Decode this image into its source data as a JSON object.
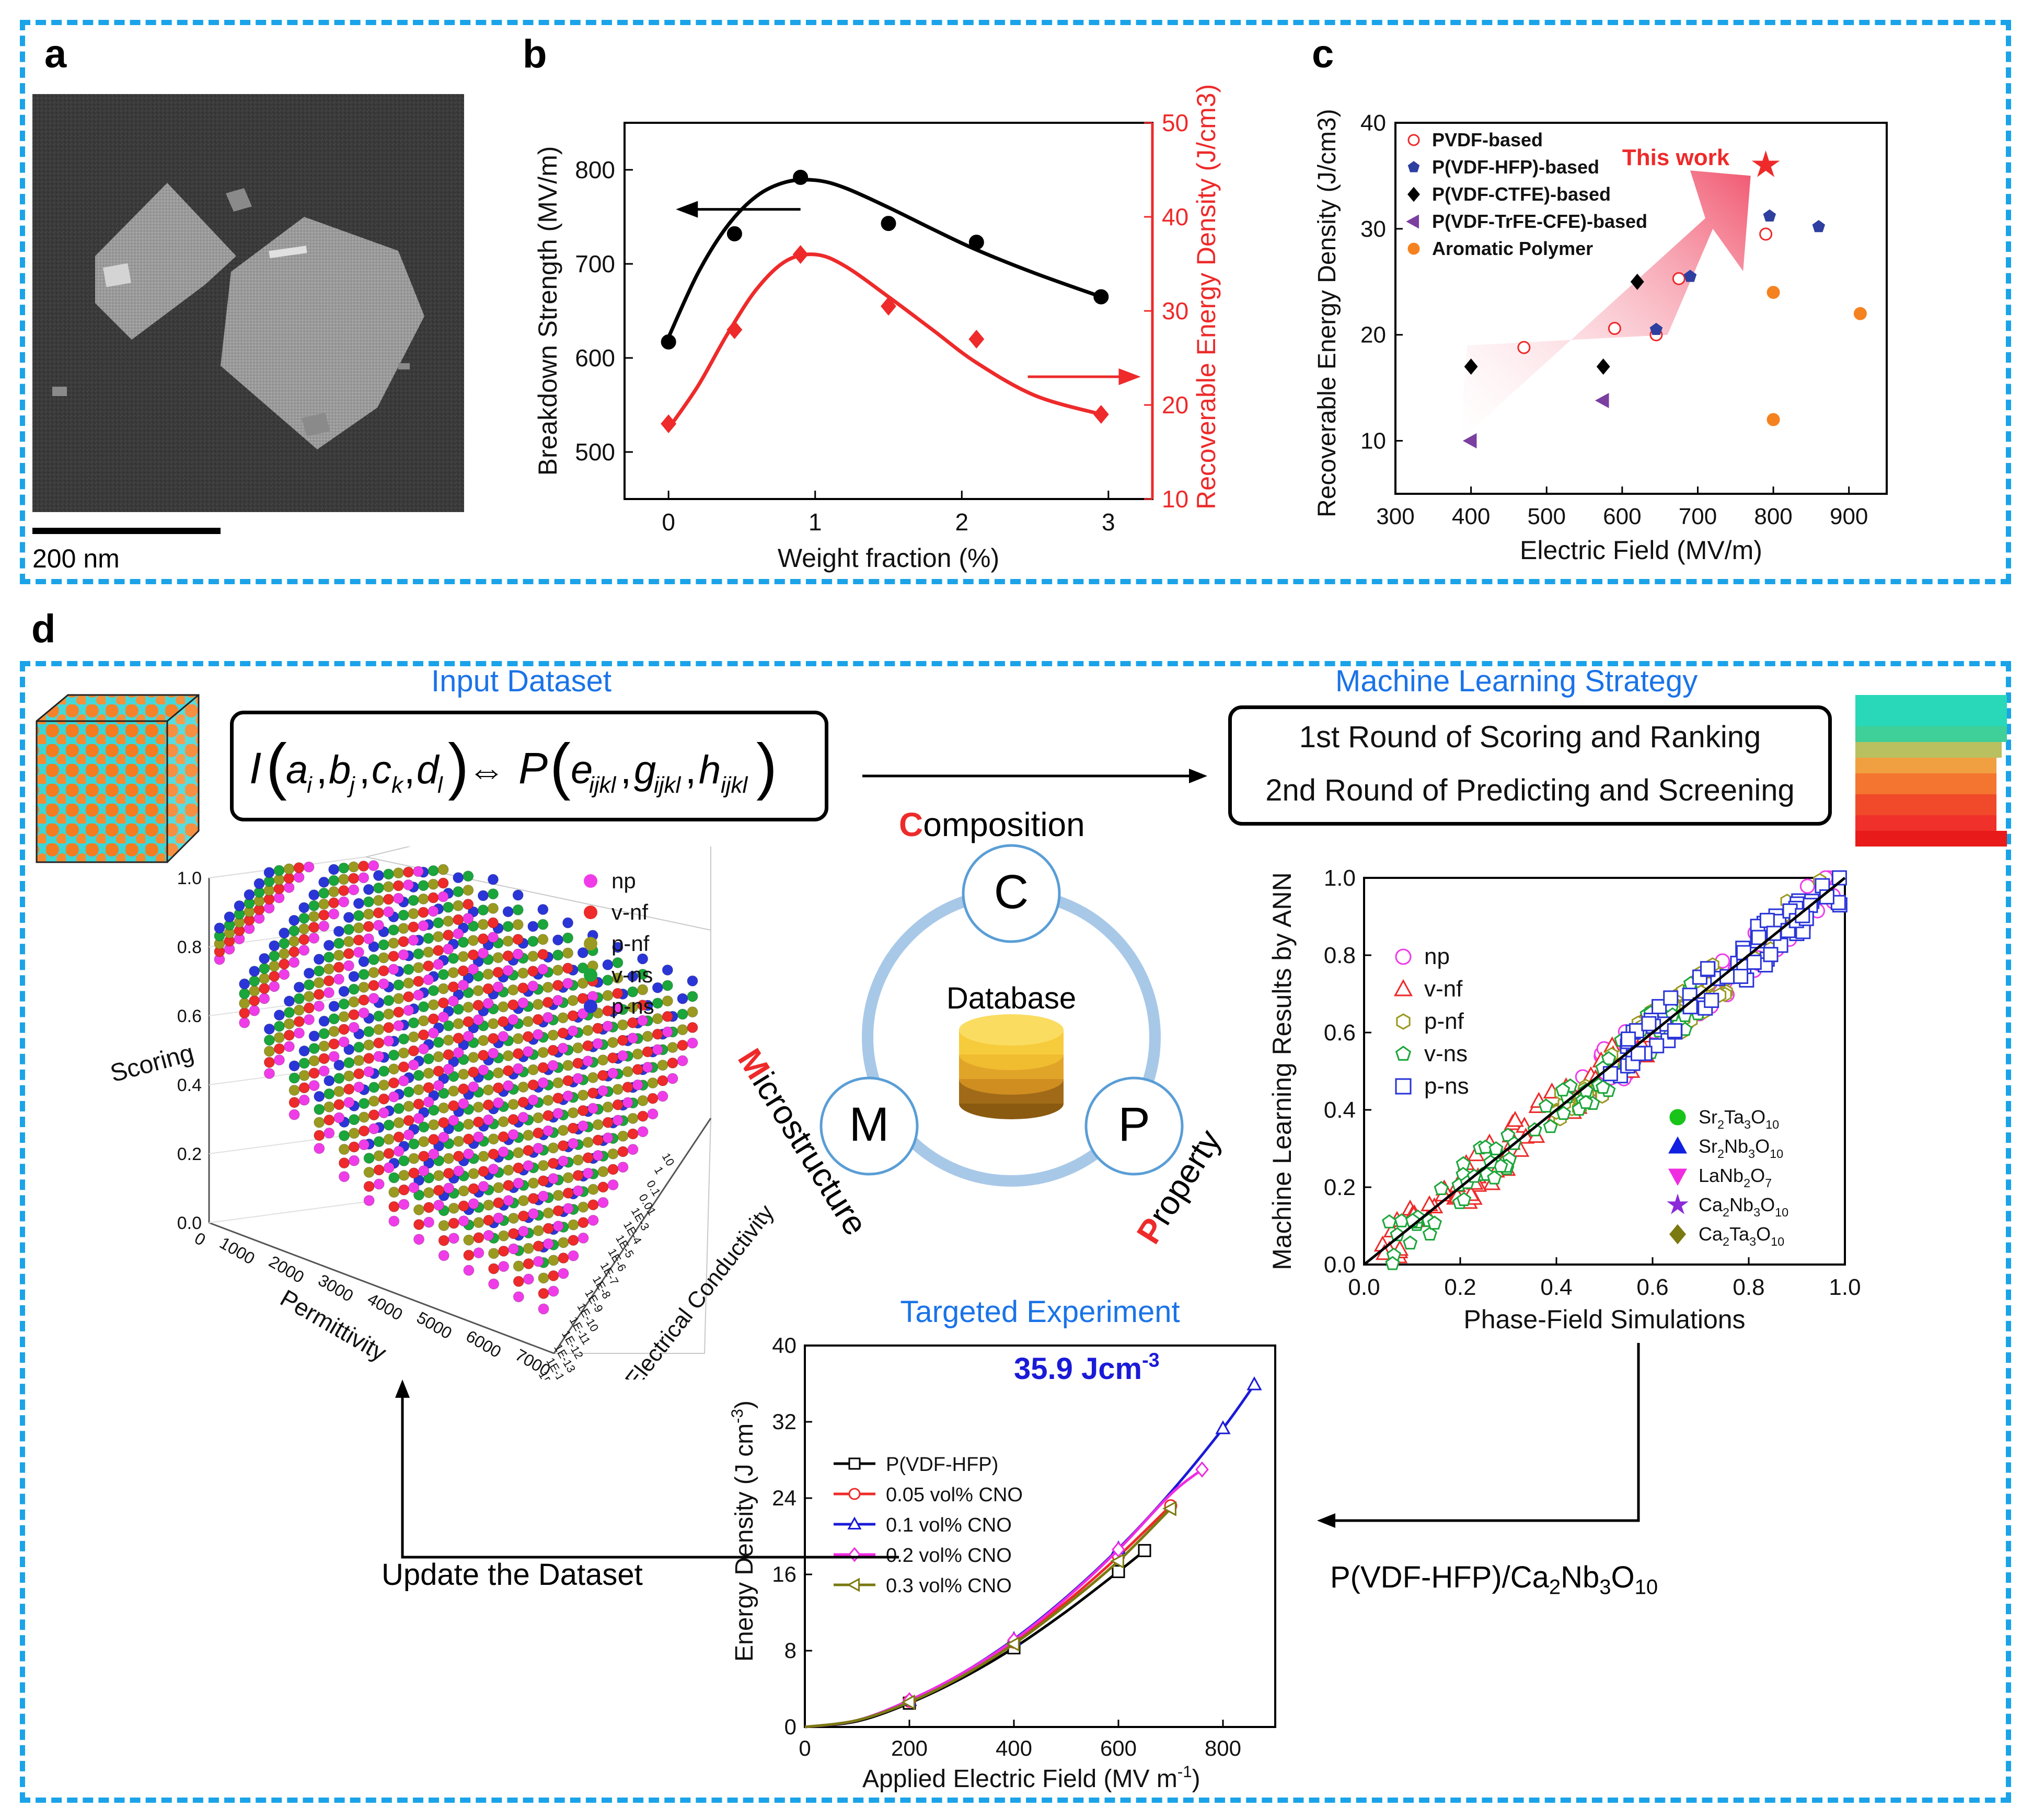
{
  "panels": {
    "a": "a",
    "b": "b",
    "c": "c",
    "d": "d"
  },
  "panel_a": {
    "scale_bar": "200 nm"
  },
  "chart_data": [
    {
      "id": "b",
      "type": "line",
      "xlabel": "Weight fraction (%)",
      "ylabel": "Breakdown Strength (MV/m)",
      "ylabel_right": "Recoverable Energy Density (J/cm3)",
      "xlim": [
        -0.3,
        3.3
      ],
      "ylim": [
        450,
        850
      ],
      "ylim_right": [
        10,
        50
      ],
      "xticks": [
        "0",
        "1",
        "2",
        "3"
      ],
      "yticks": [
        "500",
        "600",
        "700",
        "800"
      ],
      "yticks_right": [
        "10",
        "20",
        "30",
        "40",
        "50"
      ],
      "series": [
        {
          "name": "Breakdown Strength",
          "axis": "left",
          "color": "#000000",
          "x": [
            0,
            0.45,
            0.9,
            1.5,
            2.1,
            2.95
          ],
          "y": [
            617,
            732,
            792,
            743,
            723,
            665
          ],
          "fit_x": [
            0,
            0.2,
            0.4,
            0.6,
            0.8,
            1.0,
            1.2,
            1.5,
            1.8,
            2.1,
            2.5,
            2.95
          ],
          "fit_y": [
            622,
            690,
            740,
            772,
            787,
            789,
            781,
            760,
            737,
            715,
            690,
            665
          ]
        },
        {
          "name": "Recoverable Energy Density",
          "axis": "right",
          "color": "#ee2a2a",
          "x": [
            0,
            0.45,
            0.9,
            1.5,
            2.1,
            2.95
          ],
          "y": [
            18,
            28,
            36,
            30.5,
            27,
            19
          ],
          "fit_x": [
            0,
            0.2,
            0.4,
            0.6,
            0.8,
            1.0,
            1.2,
            1.5,
            1.8,
            2.1,
            2.5,
            2.95
          ],
          "fit_y": [
            17.5,
            22,
            27.5,
            32.3,
            35.3,
            36,
            34.8,
            31.5,
            28,
            24.5,
            21,
            19
          ]
        }
      ]
    },
    {
      "id": "c",
      "type": "scatter",
      "xlabel": "Electric Field (MV/m)",
      "ylabel": "Recoverable Energy Density (J/cm3)",
      "xlim": [
        300,
        950
      ],
      "ylim": [
        5,
        40
      ],
      "xticks": [
        "300",
        "400",
        "500",
        "600",
        "700",
        "800",
        "900"
      ],
      "yticks": [
        "10",
        "20",
        "30",
        "40"
      ],
      "annotation": "This work",
      "this_work": {
        "x": 790,
        "y": 36
      },
      "series": [
        {
          "name": "PVDF-based",
          "marker": "open-circle",
          "color": "#ee2a2a",
          "x": [
            470,
            590,
            645,
            675,
            790
          ],
          "y": [
            18.8,
            20.6,
            20,
            25.3,
            29.5
          ]
        },
        {
          "name": "P(VDF-HFP)-based",
          "marker": "pentagon",
          "color": "#2e3fa0",
          "x": [
            645,
            690,
            795,
            860
          ],
          "y": [
            20.5,
            25.5,
            31.2,
            30.2
          ]
        },
        {
          "name": "P(VDF-CTFE)-based",
          "marker": "diamond",
          "color": "#000000",
          "x": [
            400,
            575,
            620
          ],
          "y": [
            17,
            17,
            25
          ]
        },
        {
          "name": "P(VDF-TrFE-CFE)-based",
          "marker": "left-triangle",
          "color": "#7b3fa0",
          "x": [
            400,
            575
          ],
          "y": [
            10,
            13.8
          ]
        },
        {
          "name": "Aromatic Polymer",
          "marker": "filled-circle",
          "color": "#f58220",
          "x": [
            800,
            800,
            915
          ],
          "y": [
            24,
            12,
            22
          ]
        }
      ]
    },
    {
      "id": "d-3d",
      "type": "scatter",
      "xlabel": "Permittivity",
      "ylabel": "Electrical Conductivity",
      "zlabel": "Scoring",
      "xticks": [
        "0",
        "1000",
        "2000",
        "3000",
        "4000",
        "5000",
        "6000",
        "7000"
      ],
      "zticks": [
        "0.0",
        "0.2",
        "0.4",
        "0.6",
        "0.8",
        "1.0"
      ],
      "yticks": [
        "1E-15",
        "1E-14",
        "1E-13",
        "1E-12",
        "1E-11",
        "1E-10",
        "1E-9",
        "1E-8",
        "1E-7",
        "1E-6",
        "1E-5",
        "1E-4",
        "1E-3",
        "0.01",
        "0.1",
        "1",
        "10"
      ],
      "series": [
        {
          "name": "np",
          "color": "#f03ce8"
        },
        {
          "name": "v-nf",
          "color": "#ee2a2a"
        },
        {
          "name": "p-nf",
          "color": "#9a9a20"
        },
        {
          "name": "v-ns",
          "color": "#1aa63a"
        },
        {
          "name": "p-ns",
          "color": "#2a35d8"
        }
      ]
    },
    {
      "id": "d-ann",
      "type": "scatter",
      "xlabel": "Phase-Field Simulations",
      "ylabel": "Machine Learning Results by ANN",
      "xlim": [
        0,
        1
      ],
      "ylim": [
        0,
        1
      ],
      "xticks": [
        "0.0",
        "0.2",
        "0.4",
        "0.6",
        "0.8",
        "1.0"
      ],
      "yticks": [
        "0.0",
        "0.2",
        "0.4",
        "0.6",
        "0.8",
        "1.0"
      ],
      "series": [
        {
          "name": "np",
          "marker": "circle",
          "color": "#f03ce8"
        },
        {
          "name": "v-nf",
          "marker": "triangle",
          "color": "#ee2a2a"
        },
        {
          "name": "p-nf",
          "marker": "hexagon",
          "color": "#9a9a20"
        },
        {
          "name": "v-ns",
          "marker": "pentagon",
          "color": "#1aa63a"
        },
        {
          "name": "p-ns",
          "marker": "square",
          "color": "#2a35d8"
        }
      ],
      "legend2": [
        {
          "label": "Sr2Ta3O10",
          "color": "#18c418",
          "marker": "circle"
        },
        {
          "label": "Sr2Nb3O10",
          "color": "#1020e0",
          "marker": "triangle"
        },
        {
          "label": "LaNb2O7",
          "color": "#f02ce0",
          "marker": "down-triangle"
        },
        {
          "label": "Ca2Nb3O10",
          "color": "#8a2ad8",
          "marker": "star"
        },
        {
          "label": "Ca2Ta3O10",
          "color": "#7a7a10",
          "marker": "diamond"
        }
      ]
    },
    {
      "id": "d-exp",
      "type": "line",
      "title": "Targeted Experiment",
      "annotation": "35.9 Jcm-3",
      "xlabel": "Applied Electric Field (MV m-1)",
      "ylabel": "Energy Density (J cm-3)",
      "xlim": [
        0,
        900
      ],
      "ylim": [
        0,
        40
      ],
      "xticks": [
        "0",
        "200",
        "400",
        "600",
        "800"
      ],
      "yticks": [
        "0",
        "8",
        "16",
        "24",
        "32",
        "40"
      ],
      "series": [
        {
          "name": "P(VDF-HFP)",
          "color": "#000000",
          "marker": "square",
          "x": [
            0,
            100,
            200,
            300,
            400,
            500,
            600,
            650
          ],
          "y": [
            0,
            0.6,
            2.5,
            5.1,
            8.3,
            12.1,
            16.3,
            18.5
          ]
        },
        {
          "name": "0.05 vol% CNO",
          "color": "#ee2a2a",
          "marker": "circle",
          "x": [
            0,
            100,
            200,
            300,
            400,
            500,
            600,
            700
          ],
          "y": [
            0,
            0.7,
            2.7,
            5.4,
            8.9,
            13.1,
            17.9,
            23.2
          ]
        },
        {
          "name": "0.1 vol% CNO",
          "color": "#1a1ad8",
          "marker": "triangle",
          "x": [
            0,
            100,
            200,
            300,
            400,
            500,
            600,
            700,
            800,
            860
          ],
          "y": [
            0,
            0.7,
            2.8,
            5.6,
            9.2,
            13.6,
            18.7,
            24.6,
            31.3,
            35.9
          ]
        },
        {
          "name": "0.2 vol% CNO",
          "color": "#f02ce0",
          "marker": "diamond",
          "x": [
            0,
            100,
            200,
            300,
            400,
            500,
            600,
            700,
            760
          ],
          "y": [
            0,
            0.7,
            2.8,
            5.6,
            9.1,
            13.5,
            18.6,
            24.4,
            27
          ]
        },
        {
          "name": "0.3 vol% CNO",
          "color": "#7a7a10",
          "marker": "left-triangle",
          "x": [
            0,
            100,
            200,
            300,
            400,
            500,
            600,
            700
          ],
          "y": [
            0,
            0.7,
            2.6,
            5.3,
            8.7,
            12.8,
            17.4,
            22.9
          ]
        }
      ]
    }
  ],
  "workflow": {
    "input_title": "Input Dataset",
    "strategy_title": "Machine Learning Strategy",
    "round1": "1st Round of Scoring and Ranking",
    "round2": "2nd Round of Predicting and Screening",
    "database": "Database",
    "c_letter": "C",
    "m_letter": "M",
    "p_letter": "P",
    "composition": "Composition",
    "microstructure": "Microstructure",
    "property": "Property",
    "update": "Update the Dataset",
    "candidate": "P(VDF-HFP)/Ca2Nb3O10"
  },
  "colors": {
    "frame": "#1aa3e8",
    "title_blue": "#1a73e8",
    "accent_red": "#ee2a2a"
  }
}
